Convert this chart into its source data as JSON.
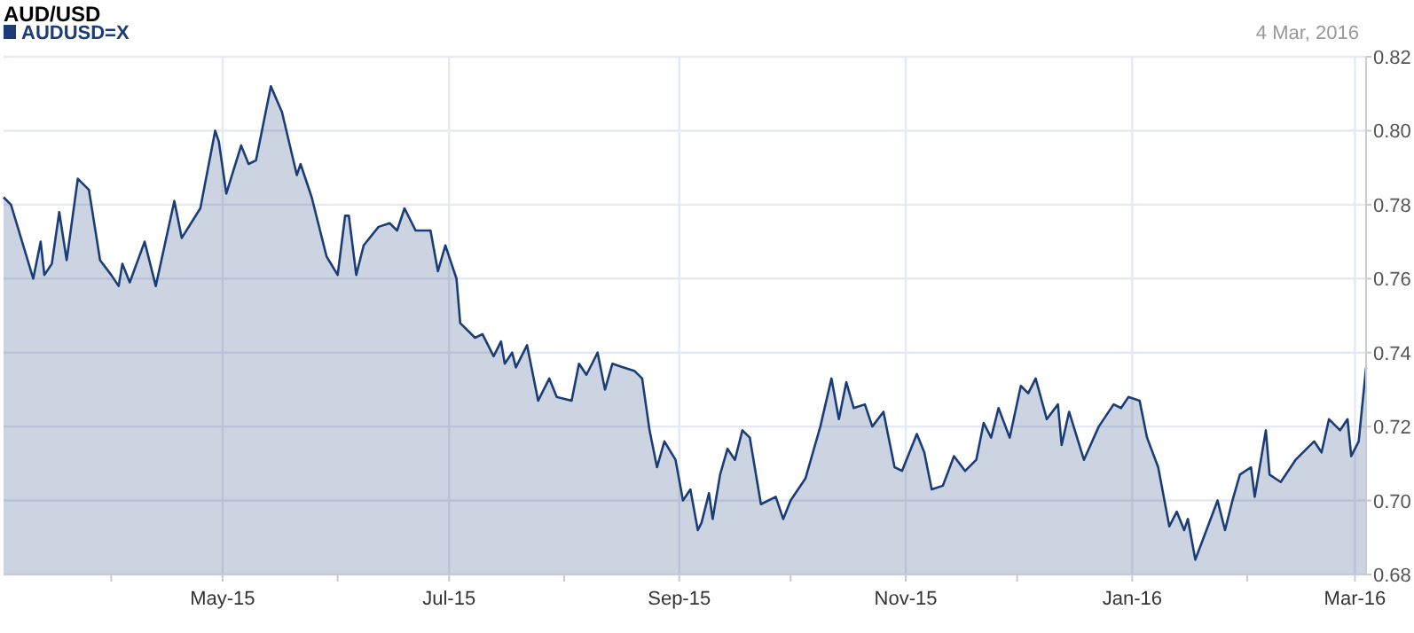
{
  "chart_data": {
    "type": "area",
    "title": "AUD/USD",
    "annotations": [
      "4 Mar, 2016"
    ],
    "x": [
      "2015-03-03",
      "2015-03-05",
      "2015-03-08",
      "2015-03-11",
      "2015-03-13",
      "2015-03-14",
      "2015-03-16",
      "2015-03-18",
      "2015-03-20",
      "2015-03-23",
      "2015-03-26",
      "2015-03-29",
      "2015-04-01",
      "2015-04-03",
      "2015-04-04",
      "2015-04-06",
      "2015-04-10",
      "2015-04-13",
      "2015-04-18",
      "2015-04-20",
      "2015-04-25",
      "2015-04-29",
      "2015-04-30",
      "2015-05-02",
      "2015-05-06",
      "2015-05-08",
      "2015-05-10",
      "2015-05-14",
      "2015-05-17",
      "2015-05-21",
      "2015-05-22",
      "2015-05-25",
      "2015-05-29",
      "2015-06-01",
      "2015-06-03",
      "2015-06-04",
      "2015-06-06",
      "2015-06-08",
      "2015-06-12",
      "2015-06-15",
      "2015-06-17",
      "2015-06-19",
      "2015-06-22",
      "2015-06-26",
      "2015-06-28",
      "2015-06-30",
      "2015-07-03",
      "2015-07-04",
      "2015-07-08",
      "2015-07-10",
      "2015-07-13",
      "2015-07-15",
      "2015-07-16",
      "2015-07-18",
      "2015-07-19",
      "2015-07-22",
      "2015-07-25",
      "2015-07-28",
      "2015-07-30",
      "2015-08-03",
      "2015-08-05",
      "2015-08-07",
      "2015-08-10",
      "2015-08-12",
      "2015-08-14",
      "2015-08-17",
      "2015-08-20",
      "2015-08-22",
      "2015-08-24",
      "2015-08-26",
      "2015-08-28",
      "2015-08-31",
      "2015-09-02",
      "2015-09-04",
      "2015-09-06",
      "2015-09-07",
      "2015-09-09",
      "2015-09-10",
      "2015-09-12",
      "2015-09-14",
      "2015-09-16",
      "2015-09-18",
      "2015-09-20",
      "2015-09-23",
      "2015-09-27",
      "2015-09-29",
      "2015-10-01",
      "2015-10-05",
      "2015-10-09",
      "2015-10-12",
      "2015-10-14",
      "2015-10-16",
      "2015-10-18",
      "2015-10-21",
      "2015-10-23",
      "2015-10-26",
      "2015-10-29",
      "2015-10-31",
      "2015-11-04",
      "2015-11-06",
      "2015-11-08",
      "2015-11-11",
      "2015-11-14",
      "2015-11-17",
      "2015-11-20",
      "2015-11-22",
      "2015-11-24",
      "2015-11-26",
      "2015-11-29",
      "2015-12-02",
      "2015-12-04",
      "2015-12-06",
      "2015-12-09",
      "2015-12-12",
      "2015-12-13",
      "2015-12-15",
      "2015-12-19",
      "2015-12-23",
      "2015-12-27",
      "2015-12-29",
      "2015-12-31",
      "2016-01-03",
      "2016-01-05",
      "2016-01-08",
      "2016-01-11",
      "2016-01-13",
      "2016-01-15",
      "2016-01-16",
      "2016-01-18",
      "2016-01-21",
      "2016-01-24",
      "2016-01-26",
      "2016-01-28",
      "2016-01-30",
      "2016-02-02",
      "2016-02-03",
      "2016-02-06",
      "2016-02-07",
      "2016-02-10",
      "2016-02-14",
      "2016-02-17",
      "2016-02-19",
      "2016-02-21",
      "2016-02-23",
      "2016-02-26",
      "2016-02-28",
      "2016-02-29",
      "2016-03-02",
      "2016-03-04"
    ],
    "series": [
      {
        "name": "AUDUSD=X",
        "color": "#1a3d78",
        "values": [
          0.782,
          0.78,
          0.77,
          0.76,
          0.77,
          0.761,
          0.764,
          0.778,
          0.765,
          0.787,
          0.784,
          0.765,
          0.761,
          0.758,
          0.764,
          0.759,
          0.77,
          0.758,
          0.781,
          0.771,
          0.779,
          0.8,
          0.797,
          0.783,
          0.796,
          0.791,
          0.792,
          0.812,
          0.805,
          0.788,
          0.791,
          0.782,
          0.766,
          0.761,
          0.777,
          0.777,
          0.761,
          0.769,
          0.774,
          0.775,
          0.773,
          0.779,
          0.773,
          0.773,
          0.762,
          0.769,
          0.76,
          0.748,
          0.744,
          0.745,
          0.739,
          0.743,
          0.737,
          0.74,
          0.736,
          0.742,
          0.727,
          0.733,
          0.728,
          0.727,
          0.737,
          0.734,
          0.74,
          0.73,
          0.737,
          0.736,
          0.735,
          0.733,
          0.719,
          0.709,
          0.716,
          0.711,
          0.7,
          0.703,
          0.692,
          0.694,
          0.702,
          0.695,
          0.707,
          0.714,
          0.711,
          0.719,
          0.717,
          0.699,
          0.701,
          0.695,
          0.7,
          0.706,
          0.72,
          0.733,
          0.722,
          0.732,
          0.725,
          0.726,
          0.72,
          0.724,
          0.709,
          0.708,
          0.718,
          0.713,
          0.703,
          0.704,
          0.712,
          0.708,
          0.711,
          0.721,
          0.717,
          0.725,
          0.717,
          0.731,
          0.729,
          0.733,
          0.722,
          0.726,
          0.715,
          0.724,
          0.711,
          0.72,
          0.726,
          0.725,
          0.728,
          0.727,
          0.717,
          0.709,
          0.693,
          0.697,
          0.692,
          0.695,
          0.684,
          0.692,
          0.7,
          0.692,
          0.7,
          0.707,
          0.709,
          0.701,
          0.719,
          0.707,
          0.705,
          0.711,
          0.714,
          0.716,
          0.713,
          0.722,
          0.719,
          0.722,
          0.712,
          0.716,
          0.736
        ]
      }
    ],
    "xlim": [
      "2015-03-03",
      "2016-03-04"
    ],
    "xticks": [
      {
        "value": "2015-04-01",
        "label": null
      },
      {
        "value": "2015-05-01",
        "label": "May-15"
      },
      {
        "value": "2015-06-01",
        "label": null
      },
      {
        "value": "2015-07-01",
        "label": "Jul-15"
      },
      {
        "value": "2015-08-01",
        "label": null
      },
      {
        "value": "2015-09-01",
        "label": "Sep-15"
      },
      {
        "value": "2015-10-01",
        "label": null
      },
      {
        "value": "2015-11-01",
        "label": "Nov-15"
      },
      {
        "value": "2015-12-01",
        "label": null
      },
      {
        "value": "2016-01-01",
        "label": "Jan-16"
      },
      {
        "value": "2016-02-01",
        "label": null
      },
      {
        "value": "2016-03-01",
        "label": "Mar-16"
      }
    ],
    "ylim": [
      0.68,
      0.82
    ],
    "yticks": [
      {
        "value": 0.68,
        "label": "0.68"
      },
      {
        "value": 0.7,
        "label": "0.70"
      },
      {
        "value": 0.72,
        "label": "0.72"
      },
      {
        "value": 0.74,
        "label": "0.74"
      },
      {
        "value": 0.76,
        "label": "0.76"
      },
      {
        "value": 0.78,
        "label": "0.78"
      },
      {
        "value": 0.8,
        "label": "0.80"
      },
      {
        "value": 0.82,
        "label": "0.82"
      }
    ],
    "grid": true,
    "legend": "top left",
    "marker": "none",
    "line_style": "solid"
  }
}
